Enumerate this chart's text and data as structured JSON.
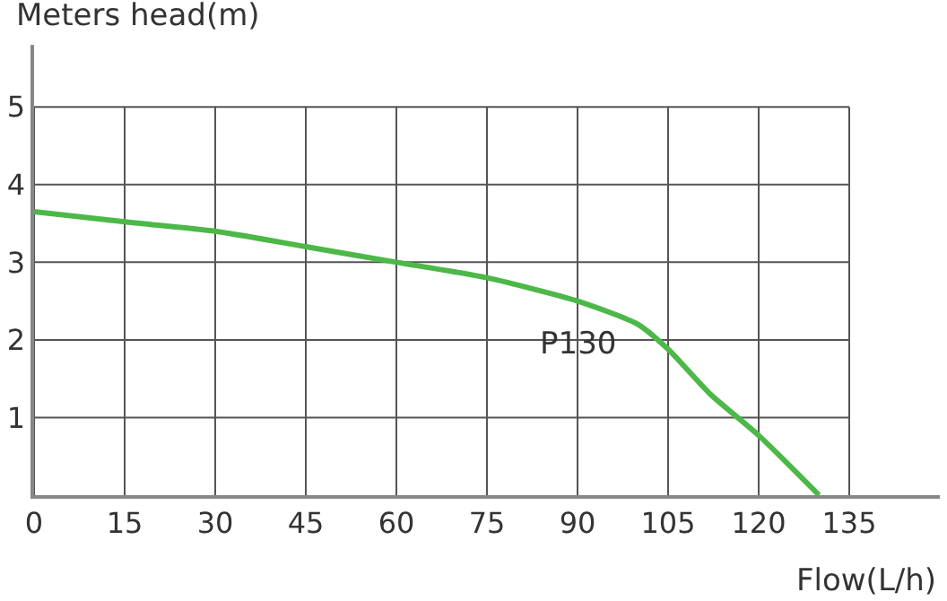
{
  "chart_data": {
    "type": "line",
    "ylabel": "Meters head(m)",
    "xlabel": "Flow(L/h)",
    "xlim": [
      0,
      150
    ],
    "ylim": [
      0,
      5.8
    ],
    "xticks": [
      0,
      15,
      30,
      45,
      60,
      75,
      90,
      105,
      120,
      135
    ],
    "yticks": [
      1,
      2,
      3,
      4,
      5
    ],
    "grid": true,
    "legend": false,
    "marker": "none",
    "line_style": "solid",
    "series": [
      {
        "name": "P130",
        "color": "#4cb848",
        "x": [
          0,
          15,
          30,
          45,
          60,
          75,
          90,
          100,
          105,
          112,
          120,
          130
        ],
        "values": [
          3.65,
          3.52,
          3.4,
          3.2,
          3.0,
          2.8,
          2.5,
          2.2,
          1.88,
          1.3,
          0.77,
          0
        ]
      }
    ]
  }
}
